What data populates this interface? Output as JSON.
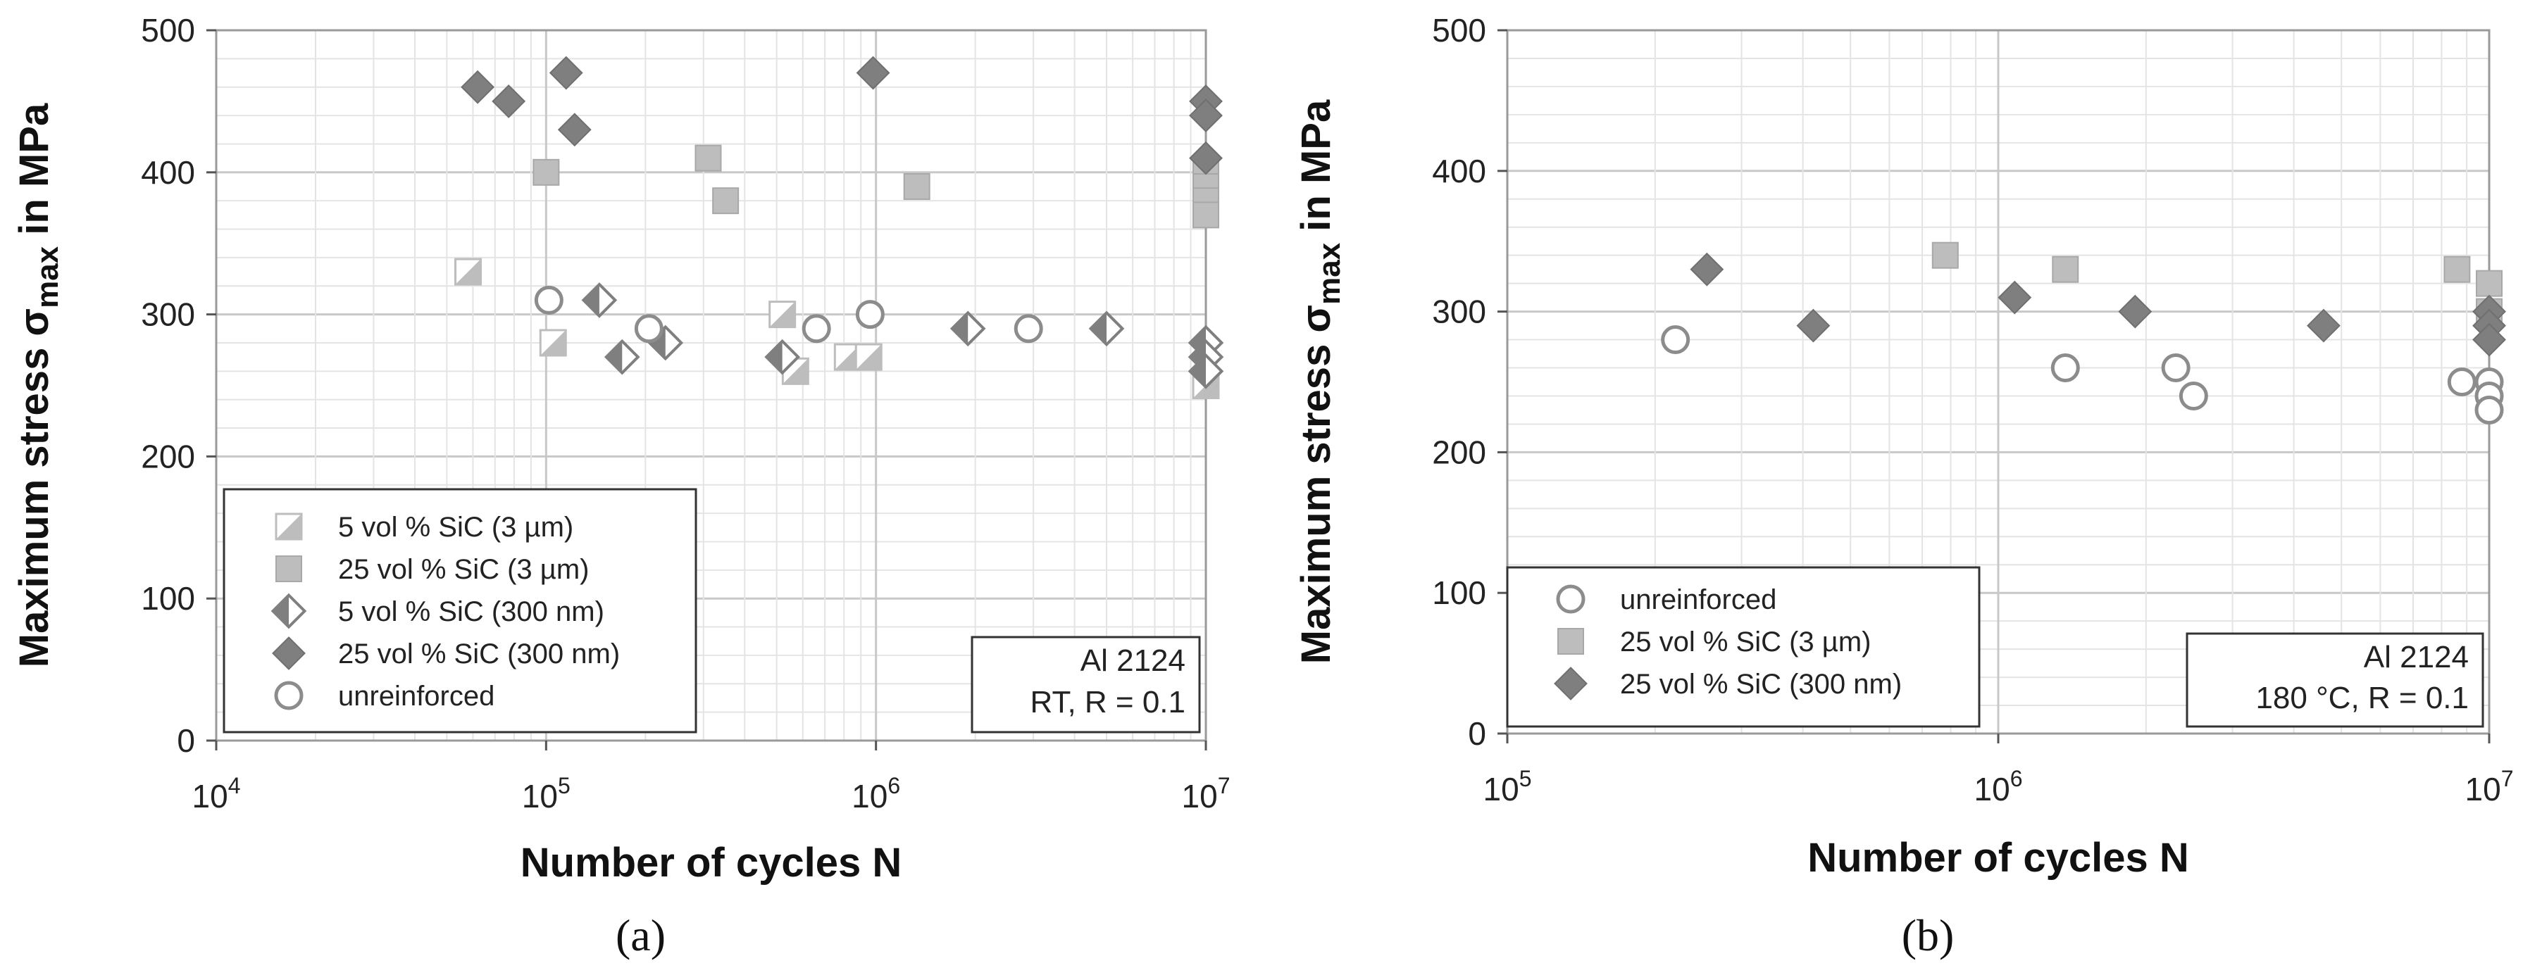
{
  "chart_data": [
    {
      "type": "scatter",
      "panel_label": "(a)",
      "xlabel": "Number of cycles N",
      "ylabel": "Maximum stress σmax in MPa",
      "ylabel_main": "Maximum stress σ",
      "ylabel_sub": "max",
      "ylabel_suffix": " in MPa",
      "x_scale": "log",
      "xlim": [
        10000,
        10000000
      ],
      "ylim": [
        0,
        500
      ],
      "xticks": [
        10000,
        100000,
        1000000,
        10000000
      ],
      "xtick_labels": [
        {
          "base": "10",
          "exp": "4"
        },
        {
          "base": "10",
          "exp": "5"
        },
        {
          "base": "10",
          "exp": "6"
        },
        {
          "base": "10",
          "exp": "7"
        }
      ],
      "yticks": [
        0,
        100,
        200,
        300,
        400,
        500
      ],
      "ytick_labels": [
        "0",
        "100",
        "200",
        "300",
        "400",
        "500"
      ],
      "grid": true,
      "legend_position": "bottom-left",
      "annotation": [
        "Al 2124",
        "RT, R = 0.1"
      ],
      "series": [
        {
          "name": "5 vol % SiC (3 µm)",
          "marker": "half-square",
          "color": "#bdbdbd",
          "points": [
            [
              58000,
              330
            ],
            [
              105000,
              280
            ],
            [
              520000,
              300
            ],
            [
              570000,
              260
            ],
            [
              820000,
              270
            ],
            [
              950000,
              270
            ],
            [
              10000000,
              250
            ]
          ]
        },
        {
          "name": "25 vol % SiC (3 µm)",
          "marker": "square",
          "color": "#bdbdbd",
          "points": [
            [
              100000,
              400
            ],
            [
              310000,
              410
            ],
            [
              350000,
              380
            ],
            [
              1330000,
              390
            ],
            [
              10000000,
              400
            ],
            [
              10000000,
              390
            ],
            [
              10000000,
              380
            ],
            [
              10000000,
              370
            ]
          ]
        },
        {
          "name": "5 vol % SiC (300 nm)",
          "marker": "half-diamond",
          "color": "#7f7f7f",
          "points": [
            [
              145000,
              310
            ],
            [
              170000,
              270
            ],
            [
              230000,
              280
            ],
            [
              520000,
              270
            ],
            [
              1900000,
              290
            ],
            [
              5000000,
              290
            ],
            [
              10000000,
              280
            ],
            [
              10000000,
              270
            ],
            [
              10000000,
              260
            ]
          ]
        },
        {
          "name": "25 vol % SiC (300 nm)",
          "marker": "diamond",
          "color": "#7f7f7f",
          "points": [
            [
              62000,
              460
            ],
            [
              77000,
              450
            ],
            [
              115000,
              470
            ],
            [
              122000,
              430
            ],
            [
              980000,
              470
            ],
            [
              10000000,
              450
            ],
            [
              10000000,
              440
            ],
            [
              10000000,
              410
            ]
          ]
        },
        {
          "name": "unreinforced",
          "marker": "circle",
          "color": "#8c8c8c",
          "points": [
            [
              102000,
              310
            ],
            [
              205000,
              290
            ],
            [
              660000,
              290
            ],
            [
              960000,
              300
            ],
            [
              2900000,
              290
            ]
          ]
        }
      ]
    },
    {
      "type": "scatter",
      "panel_label": "(b)",
      "xlabel": "Number of cycles N",
      "ylabel": "Maximum stress σmax in MPa",
      "ylabel_main": "Maximum stress σ",
      "ylabel_sub": "max",
      "ylabel_suffix": " in MPa",
      "x_scale": "log",
      "xlim": [
        100000,
        10000000
      ],
      "ylim": [
        0,
        500
      ],
      "xticks": [
        100000,
        1000000,
        10000000
      ],
      "xtick_labels": [
        {
          "base": "10",
          "exp": "5"
        },
        {
          "base": "10",
          "exp": "6"
        },
        {
          "base": "10",
          "exp": "7"
        }
      ],
      "yticks": [
        0,
        100,
        200,
        300,
        400,
        500
      ],
      "ytick_labels": [
        "0",
        "100",
        "200",
        "300",
        "400",
        "500"
      ],
      "grid": true,
      "legend_position": "bottom-left",
      "annotation": [
        "Al 2124",
        "180 °C, R = 0.1"
      ],
      "series": [
        {
          "name": "unreinforced",
          "marker": "circle",
          "color": "#8c8c8c",
          "points": [
            [
              220000,
              280
            ],
            [
              1370000,
              260
            ],
            [
              2300000,
              260
            ],
            [
              2500000,
              240
            ],
            [
              8800000,
              250
            ],
            [
              10000000,
              250
            ],
            [
              10000000,
              240
            ],
            [
              10000000,
              230
            ]
          ]
        },
        {
          "name": "25 vol % SiC (3 µm)",
          "marker": "square",
          "color": "#bdbdbd",
          "points": [
            [
              780000,
              340
            ],
            [
              1370000,
              330
            ],
            [
              8600000,
              330
            ],
            [
              10000000,
              320
            ],
            [
              10000000,
              300
            ]
          ]
        },
        {
          "name": "25 vol % SiC (300 nm)",
          "marker": "diamond",
          "color": "#7f7f7f",
          "points": [
            [
              255000,
              330
            ],
            [
              420000,
              290
            ],
            [
              1080000,
              310
            ],
            [
              1900000,
              300
            ],
            [
              4600000,
              290
            ],
            [
              10000000,
              300
            ],
            [
              10000000,
              290
            ],
            [
              10000000,
              280
            ]
          ]
        }
      ]
    }
  ]
}
